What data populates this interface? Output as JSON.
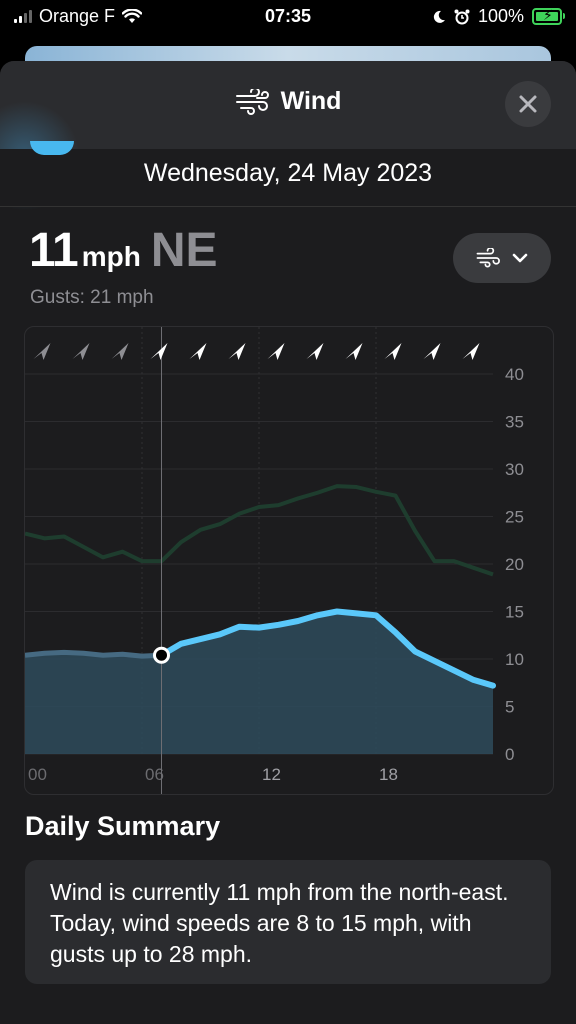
{
  "status_bar": {
    "carrier": "Orange F",
    "time": "07:35",
    "battery": "100%"
  },
  "header": {
    "title": "Wind",
    "icon": "wind-icon",
    "close_icon": "close-icon"
  },
  "date": "Wednesday, 24 May 2023",
  "current": {
    "speed": "11",
    "unit": "mph",
    "direction": "NE",
    "gusts": "Gusts: 21 mph"
  },
  "toggle": {
    "icon": "wind-icon",
    "chevron": "chevron-down-icon"
  },
  "colors": {
    "accent": "#5ac8fa",
    "gust_line": "#1d3a2c",
    "background": "#1c1c1e"
  },
  "chart_data": {
    "type": "area",
    "xlabel": "",
    "ylabel": "",
    "x_ticks": [
      "00",
      "06",
      "12",
      "18"
    ],
    "y_ticks": [
      "0",
      "5",
      "10",
      "15",
      "20",
      "25",
      "30",
      "35",
      "40"
    ],
    "ylim": [
      0,
      40
    ],
    "xlim": [
      0,
      24
    ],
    "current_hour": 7,
    "series": [
      {
        "name": "",
        "values": [
          [
            0,
            10.4
          ],
          [
            1,
            10.6
          ],
          [
            2,
            10.7
          ],
          [
            3,
            10.6
          ],
          [
            4,
            10.4
          ],
          [
            5,
            10.5
          ],
          [
            6,
            10.3
          ],
          [
            7,
            10.4
          ],
          [
            8,
            11.6
          ],
          [
            9,
            12.1
          ],
          [
            10,
            12.6
          ],
          [
            11,
            13.4
          ],
          [
            12,
            13.3
          ],
          [
            13,
            13.6
          ],
          [
            14,
            14.0
          ],
          [
            15,
            14.6
          ],
          [
            16,
            15.0
          ],
          [
            17,
            14.8
          ],
          [
            18,
            14.6
          ],
          [
            19,
            12.8
          ],
          [
            20,
            10.8
          ],
          [
            21,
            9.8
          ],
          [
            22,
            8.8
          ],
          [
            23,
            7.8
          ]
        ]
      },
      {
        "name": "",
        "values": [
          [
            0,
            23.2
          ],
          [
            1,
            22.7
          ],
          [
            2,
            22.9
          ],
          [
            3,
            21.8
          ],
          [
            4,
            20.7
          ],
          [
            5,
            21.3
          ],
          [
            6,
            20.3
          ],
          [
            7,
            20.3
          ],
          [
            8,
            22.3
          ],
          [
            9,
            23.6
          ],
          [
            10,
            24.2
          ],
          [
            11,
            25.3
          ],
          [
            12,
            26.0
          ],
          [
            13,
            26.2
          ],
          [
            14,
            26.9
          ],
          [
            15,
            27.5
          ],
          [
            16,
            28.2
          ],
          [
            17,
            28.1
          ],
          [
            18,
            27.6
          ],
          [
            19,
            27.2
          ],
          [
            20,
            23.5
          ],
          [
            21,
            20.3
          ],
          [
            22,
            20.3
          ],
          [
            23,
            19.6
          ],
          [
            24,
            18.9
          ]
        ]
      }
    ],
    "hourly_direction_markers": 12
  },
  "summary": {
    "title": "Daily Summary",
    "text": "Wind is currently 11 mph from the north-east. Today, wind speeds are 8 to 15 mph, with gusts up to 28 mph."
  }
}
